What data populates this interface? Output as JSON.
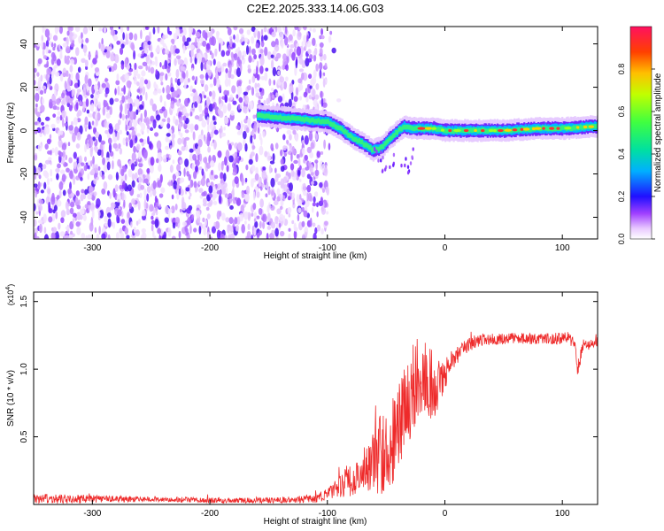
{
  "title": "C2E2.2025.333.14.06.G03",
  "chart_data": [
    {
      "type": "heatmap",
      "xlabel": "Height of straight line (km)",
      "ylabel": "Frequency (Hz)",
      "xlim": [
        -350,
        130
      ],
      "ylim": [
        -50,
        48
      ],
      "xticks": [
        -300,
        -200,
        -100,
        0,
        100
      ],
      "yticks": [
        -40,
        -20,
        0,
        20,
        40
      ],
      "grid": false,
      "noise_region_x": [
        -350,
        -100
      ],
      "noise_frequency_span": [
        -50,
        48
      ],
      "ridge": {
        "x": [
          -160,
          -140,
          -120,
          -100,
          -90,
          -80,
          -70,
          -62,
          -55,
          -48,
          -40,
          -35,
          -30,
          -20,
          -10,
          0,
          20,
          50,
          80,
          100,
          130
        ],
        "y": [
          7,
          6,
          5,
          4,
          1,
          -3,
          -6,
          -9,
          -8,
          -4,
          0,
          2,
          1,
          1,
          1,
          0,
          0,
          0,
          1,
          1,
          2
        ]
      },
      "colorbar": {
        "label": "Normalized spectral amplitude",
        "ticks": [
          "0.0",
          "0.2",
          "0.4",
          "0.6",
          "0.8"
        ],
        "range": [
          0,
          1
        ]
      }
    },
    {
      "type": "line",
      "xlabel": "Height of straight line (km)",
      "ylabel": "SNR (10 * v/v)",
      "scale_label": "(x10",
      "scale_exponent": "4",
      "xlim": [
        -350,
        130
      ],
      "ylim": [
        0,
        1.57
      ],
      "xticks": [
        -300,
        -200,
        -100,
        0,
        100
      ],
      "yticks": [
        "0.5",
        "1.0",
        "1.5"
      ],
      "series": [
        {
          "name": "SNR",
          "color": "#ee2a2a",
          "x": [
            -350,
            -300,
            -250,
            -200,
            -150,
            -110,
            -95,
            -85,
            -75,
            -65,
            -55,
            -45,
            -38,
            -32,
            -27,
            -22,
            -18,
            -12,
            -7,
            -2,
            5,
            15,
            25,
            35,
            45,
            60,
            80,
            100,
            110,
            113,
            118,
            125,
            130
          ],
          "y": [
            0.04,
            0.04,
            0.04,
            0.03,
            0.03,
            0.04,
            0.1,
            0.15,
            0.2,
            0.3,
            0.35,
            0.45,
            0.65,
            0.75,
            0.85,
            0.95,
            1.0,
            0.9,
            0.85,
            0.95,
            1.05,
            1.15,
            1.2,
            1.22,
            1.22,
            1.23,
            1.22,
            1.23,
            1.22,
            1.0,
            1.18,
            1.18,
            1.2
          ],
          "noise": [
            0.04,
            0.03,
            0.02,
            0.02,
            0.02,
            0.03,
            0.06,
            0.12,
            0.12,
            0.2,
            0.3,
            0.32,
            0.35,
            0.35,
            0.35,
            0.3,
            0.3,
            0.28,
            0.2,
            0.15,
            0.08,
            0.06,
            0.05,
            0.05,
            0.04,
            0.04,
            0.04,
            0.05,
            0.06,
            0.06,
            0.05,
            0.04,
            0.04
          ]
        }
      ]
    }
  ]
}
